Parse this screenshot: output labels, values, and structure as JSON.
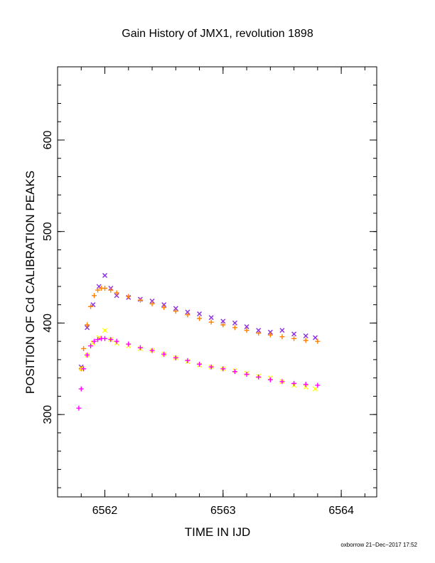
{
  "chart_data": {
    "type": "scatter",
    "title": "Gain History of JMX1, revolution 1898",
    "xlabel": "TIME IN IJD",
    "ylabel": "POSITION OF Cd CALIBRATION PEAKS",
    "xlim": [
      6561.6,
      6564.3
    ],
    "ylim": [
      210,
      680
    ],
    "x_major_ticks": [
      6562,
      6563,
      6564
    ],
    "x_tick_labels": [
      "6562",
      "6563",
      "6564"
    ],
    "x_minor_step": 0.2,
    "y_major_ticks": [
      300,
      400,
      500,
      600
    ],
    "y_tick_labels": [
      "300",
      "400",
      "500",
      "600"
    ],
    "y_minor_step": 20,
    "grid": false,
    "footer": "oxborrow 21−Dec−2017 17:52",
    "series": [
      {
        "marker": "cross-x",
        "color": "#8a2be2",
        "x": [
          6561.8,
          6561.85,
          6561.9,
          6561.95,
          6562.0,
          6562.05,
          6562.1,
          6562.2,
          6562.3,
          6562.4,
          6562.5,
          6562.6,
          6562.7,
          6562.8,
          6562.9,
          6563.0,
          6563.1,
          6563.2,
          6563.3,
          6563.4,
          6563.5,
          6563.6,
          6563.7,
          6563.78
        ],
        "y": [
          352,
          395,
          420,
          440,
          452,
          438,
          430,
          428,
          426,
          424,
          420,
          416,
          412,
          410,
          406,
          402,
          400,
          396,
          392,
          390,
          392,
          388,
          386,
          384
        ]
      },
      {
        "marker": "plus",
        "color": "#ff7f00",
        "x": [
          6561.8,
          6561.82,
          6561.85,
          6561.88,
          6561.91,
          6561.94,
          6561.97,
          6562.0,
          6562.05,
          6562.1,
          6562.2,
          6562.3,
          6562.4,
          6562.5,
          6562.6,
          6562.7,
          6562.8,
          6562.9,
          6563.0,
          6563.1,
          6563.2,
          6563.3,
          6563.4,
          6563.5,
          6563.6,
          6563.7,
          6563.8
        ],
        "y": [
          350,
          372,
          398,
          418,
          430,
          436,
          438,
          438,
          436,
          433,
          429,
          425,
          421,
          417,
          413,
          409,
          405,
          401,
          398,
          395,
          392,
          389,
          387,
          385,
          383,
          381,
          380
        ]
      },
      {
        "marker": "cross-x",
        "color": "#ffff00",
        "x": [
          6561.8,
          6561.85,
          6561.9,
          6561.95,
          6562.0,
          6562.05,
          6562.1,
          6562.2,
          6562.3,
          6562.4,
          6562.5,
          6562.6,
          6562.7,
          6562.8,
          6562.9,
          6563.0,
          6563.1,
          6563.2,
          6563.3,
          6563.4,
          6563.5,
          6563.6,
          6563.7,
          6563.78
        ],
        "y": [
          350,
          365,
          378,
          384,
          392,
          382,
          378,
          375,
          372,
          370,
          366,
          362,
          358,
          354,
          352,
          350,
          348,
          345,
          342,
          340,
          336,
          332,
          330,
          328
        ]
      },
      {
        "marker": "plus",
        "color": "#ff00ff",
        "x": [
          6561.78,
          6561.8,
          6561.82,
          6561.85,
          6561.88,
          6561.91,
          6561.94,
          6561.97,
          6562.0,
          6562.05,
          6562.1,
          6562.2,
          6562.3,
          6562.4,
          6562.5,
          6562.6,
          6562.7,
          6562.8,
          6562.9,
          6563.0,
          6563.1,
          6563.2,
          6563.3,
          6563.4,
          6563.5,
          6563.6,
          6563.7,
          6563.8
        ],
        "y": [
          307,
          328,
          350,
          365,
          375,
          380,
          382,
          383,
          383,
          382,
          380,
          377,
          373,
          370,
          366,
          362,
          359,
          355,
          352,
          350,
          347,
          344,
          341,
          338,
          336,
          334,
          333,
          332
        ]
      }
    ]
  }
}
